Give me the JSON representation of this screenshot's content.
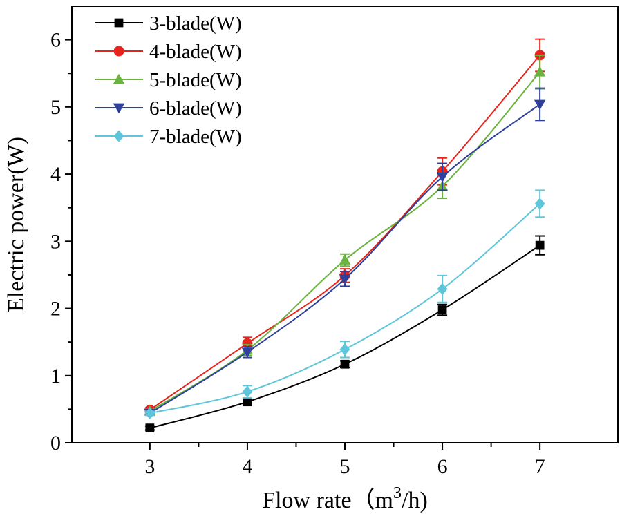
{
  "chart_data": {
    "type": "line",
    "title": "",
    "xlabel": "Flow rate（m",
    "xlabel_sup": "3",
    "xlabel_suffix": "/h)",
    "ylabel": "Electric power(W)",
    "x": [
      3,
      4,
      5,
      6,
      7
    ],
    "xlim": [
      2.2,
      7.8
    ],
    "ylim": [
      0,
      6.5
    ],
    "xticks": [
      3,
      4,
      5,
      6,
      7
    ],
    "yticks": [
      0,
      1,
      2,
      3,
      4,
      5,
      6
    ],
    "grid": false,
    "legend_position": "top-left",
    "series": [
      {
        "name": "3-blade(W)",
        "marker": "square",
        "color": "#000000",
        "values": [
          0.22,
          0.61,
          1.17,
          1.98,
          2.94
        ],
        "errors": [
          0.03,
          0.04,
          0.05,
          0.08,
          0.14
        ]
      },
      {
        "name": "4-blade(W)",
        "marker": "circle",
        "color": "#e8231b",
        "values": [
          0.49,
          1.48,
          2.49,
          4.04,
          5.77
        ],
        "errors": [
          0.03,
          0.09,
          0.1,
          0.2,
          0.24
        ]
      },
      {
        "name": "5-blade(W)",
        "marker": "triangle-up",
        "color": "#6ab33e",
        "values": [
          0.47,
          1.38,
          2.72,
          3.82,
          5.52
        ],
        "errors": [
          0.03,
          0.08,
          0.09,
          0.18,
          0.25
        ]
      },
      {
        "name": "6-blade(W)",
        "marker": "triangle-down",
        "color": "#2e3f9c",
        "values": [
          0.44,
          1.35,
          2.44,
          3.96,
          5.04
        ],
        "errors": [
          0.03,
          0.08,
          0.11,
          0.2,
          0.24
        ]
      },
      {
        "name": "7-blade(W)",
        "marker": "diamond",
        "color": "#5fc5da",
        "values": [
          0.44,
          0.76,
          1.39,
          2.29,
          3.56
        ],
        "errors": [
          0.03,
          0.09,
          0.12,
          0.2,
          0.2
        ]
      }
    ]
  }
}
